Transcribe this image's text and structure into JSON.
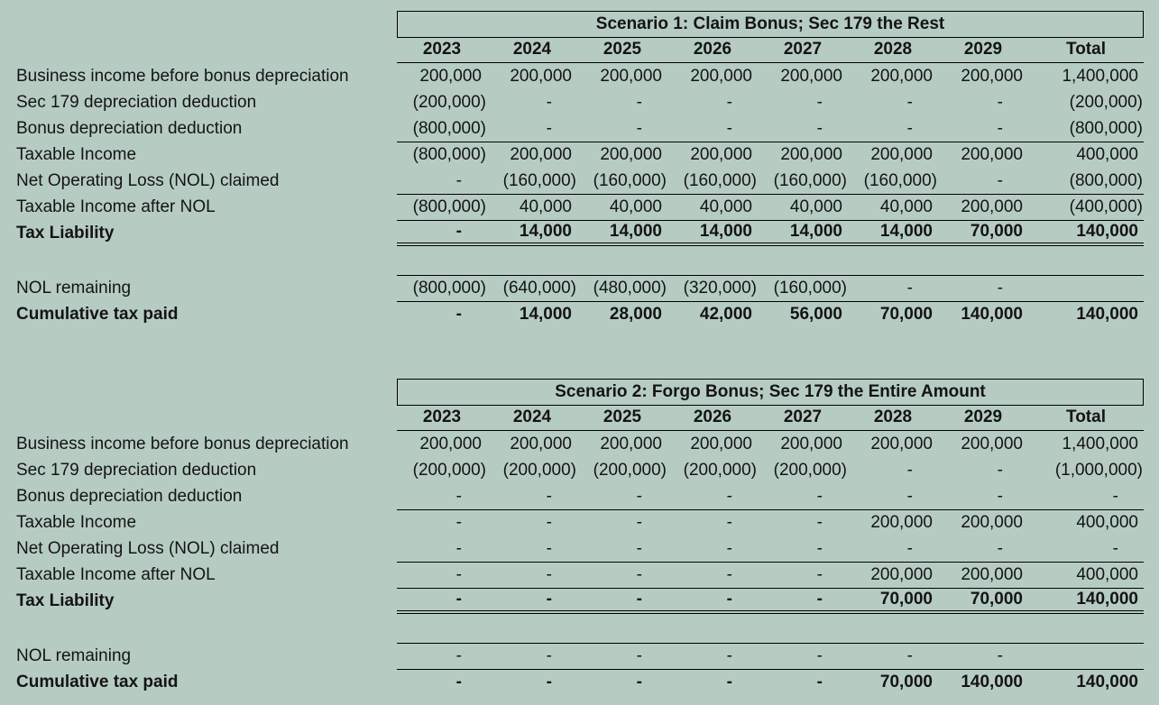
{
  "page": {
    "background": "#b6ccc3",
    "text_color": "#141414",
    "border_color": "#000000"
  },
  "tables": [
    {
      "title": "Scenario 1: Claim Bonus; Sec 179 the Rest",
      "columns": [
        "2023",
        "2024",
        "2025",
        "2026",
        "2027",
        "2028",
        "2029",
        "Total"
      ],
      "rows": [
        {
          "label": "Business income before bonus depreciation",
          "bold": false,
          "rule": "",
          "cells": [
            "200,000",
            "200,000",
            "200,000",
            "200,000",
            "200,000",
            "200,000",
            "200,000",
            "1,400,000"
          ]
        },
        {
          "label": "Sec 179 depreciation deduction",
          "bold": false,
          "rule": "",
          "cells": [
            "(200,000)",
            "-",
            "-",
            "-",
            "-",
            "-",
            "-",
            "(200,000)"
          ]
        },
        {
          "label": "Bonus depreciation deduction",
          "bold": false,
          "rule": "bottom",
          "cells": [
            "(800,000)",
            "-",
            "-",
            "-",
            "-",
            "-",
            "-",
            "(800,000)"
          ]
        },
        {
          "label": "Taxable Income",
          "bold": false,
          "rule": "",
          "cells": [
            "(800,000)",
            "200,000",
            "200,000",
            "200,000",
            "200,000",
            "200,000",
            "200,000",
            "400,000"
          ]
        },
        {
          "label": "Net Operating Loss (NOL) claimed",
          "bold": false,
          "rule": "bottom",
          "cells": [
            "-",
            "(160,000)",
            "(160,000)",
            "(160,000)",
            "(160,000)",
            "(160,000)",
            "-",
            "(800,000)"
          ]
        },
        {
          "label": "Taxable Income after NOL",
          "bold": false,
          "rule": "bottom",
          "cells": [
            "(800,000)",
            "40,000",
            "40,000",
            "40,000",
            "40,000",
            "40,000",
            "200,000",
            "(400,000)"
          ]
        },
        {
          "label": "Tax Liability",
          "bold": true,
          "rule": "double",
          "cells": [
            "-",
            "14,000",
            "14,000",
            "14,000",
            "14,000",
            "14,000",
            "70,000",
            "140,000"
          ]
        },
        {
          "spacer": true
        },
        {
          "label": "NOL remaining",
          "bold": false,
          "rule": "top",
          "cells": [
            "(800,000)",
            "(640,000)",
            "(480,000)",
            "(320,000)",
            "(160,000)",
            "-",
            "-",
            ""
          ]
        },
        {
          "label": "Cumulative tax paid",
          "bold": true,
          "rule": "top",
          "cells": [
            "-",
            "14,000",
            "28,000",
            "42,000",
            "56,000",
            "70,000",
            "140,000",
            "140,000"
          ]
        }
      ]
    },
    {
      "title": "Scenario 2: Forgo Bonus; Sec 179 the Entire Amount",
      "columns": [
        "2023",
        "2024",
        "2025",
        "2026",
        "2027",
        "2028",
        "2029",
        "Total"
      ],
      "rows": [
        {
          "label": "Business income before bonus depreciation",
          "bold": false,
          "rule": "",
          "cells": [
            "200,000",
            "200,000",
            "200,000",
            "200,000",
            "200,000",
            "200,000",
            "200,000",
            "1,400,000"
          ]
        },
        {
          "label": "Sec 179 depreciation deduction",
          "bold": false,
          "rule": "",
          "cells": [
            "(200,000)",
            "(200,000)",
            "(200,000)",
            "(200,000)",
            "(200,000)",
            "-",
            "-",
            "(1,000,000)"
          ]
        },
        {
          "label": "Bonus depreciation deduction",
          "bold": false,
          "rule": "bottom",
          "cells": [
            "-",
            "-",
            "-",
            "-",
            "-",
            "-",
            "-",
            "-"
          ]
        },
        {
          "label": "Taxable Income",
          "bold": false,
          "rule": "",
          "cells": [
            "-",
            "-",
            "-",
            "-",
            "-",
            "200,000",
            "200,000",
            "400,000"
          ]
        },
        {
          "label": "Net Operating Loss (NOL) claimed",
          "bold": false,
          "rule": "bottom",
          "cells": [
            "-",
            "-",
            "-",
            "-",
            "-",
            "-",
            "-",
            "-"
          ]
        },
        {
          "label": "Taxable Income after NOL",
          "bold": false,
          "rule": "bottom",
          "cells": [
            "-",
            "-",
            "-",
            "-",
            "-",
            "200,000",
            "200,000",
            "400,000"
          ]
        },
        {
          "label": "Tax Liability",
          "bold": true,
          "rule": "double",
          "cells": [
            "-",
            "-",
            "-",
            "-",
            "-",
            "70,000",
            "70,000",
            "140,000"
          ]
        },
        {
          "spacer": true
        },
        {
          "label": "NOL remaining",
          "bold": false,
          "rule": "top",
          "cells": [
            "-",
            "-",
            "-",
            "-",
            "-",
            "-",
            "-",
            ""
          ]
        },
        {
          "label": "Cumulative tax paid",
          "bold": true,
          "rule": "top",
          "cells": [
            "-",
            "-",
            "-",
            "-",
            "-",
            "70,000",
            "140,000",
            "140,000"
          ]
        }
      ]
    }
  ]
}
